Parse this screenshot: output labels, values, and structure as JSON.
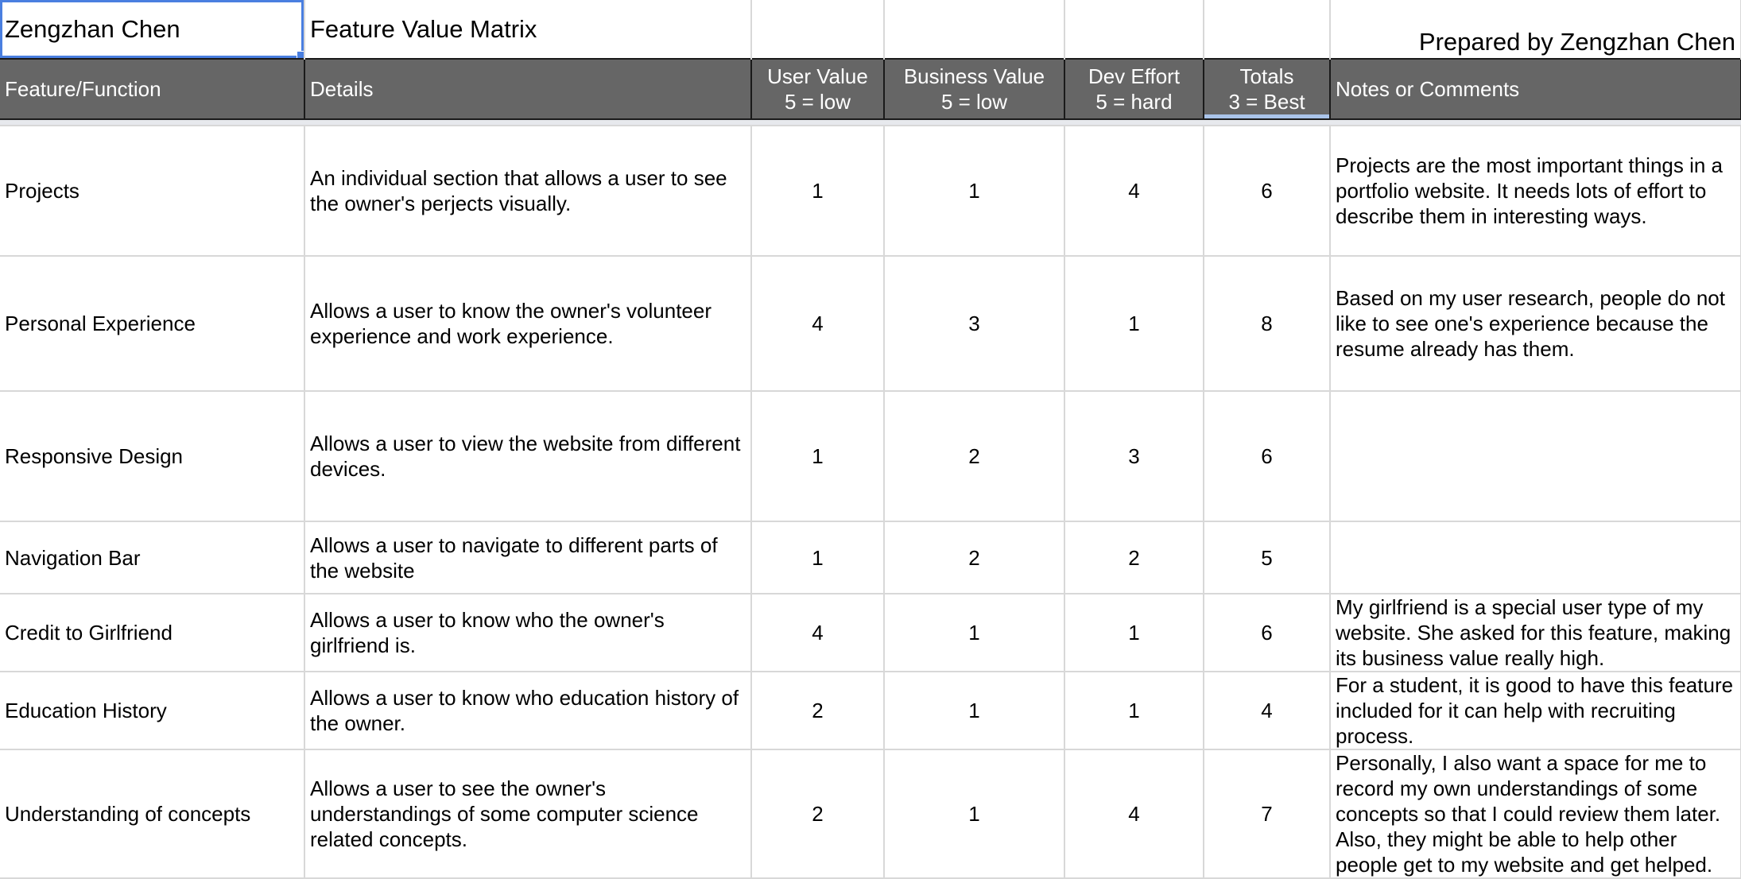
{
  "sheet": {
    "author_cell": "Zengzhan Chen",
    "title_cell": "Feature Value Matrix",
    "prepared_by": "Prepared by Zengzhan Chen"
  },
  "header": {
    "feature": "Feature/Function",
    "details": "Details",
    "user_value": "User Value",
    "user_value_scale": "5 = low",
    "business_value": "Business Value",
    "business_value_scale": "5 = low",
    "dev_effort": "Dev Effort",
    "dev_effort_scale": "5 = hard",
    "totals": "Totals",
    "totals_scale": "3 = Best",
    "notes": "Notes or Comments"
  },
  "rows": [
    {
      "feature": "Projects",
      "details": "An individual section that allows a user to see the owner's perjects visually.",
      "user_value": "1",
      "business_value": "1",
      "dev_effort": "4",
      "totals": "6",
      "notes": "Projects are the most important things in a portfolio website. It needs lots of effort to describe them in interesting ways."
    },
    {
      "feature": "Personal Experience",
      "details": "Allows a user to know the owner's volunteer experience and work experience.",
      "user_value": "4",
      "business_value": "3",
      "dev_effort": "1",
      "totals": "8",
      "notes": "Based on my user research, people do not like to see one's experience because the resume already has them."
    },
    {
      "feature": "Responsive Design",
      "details": "Allows a user to view the website from different devices.",
      "user_value": "1",
      "business_value": "2",
      "dev_effort": "3",
      "totals": "6",
      "notes": ""
    },
    {
      "feature": "Navigation Bar",
      "details": "Allows a user to navigate to different parts of the website",
      "user_value": "1",
      "business_value": "2",
      "dev_effort": "2",
      "totals": "5",
      "notes": ""
    },
    {
      "feature": "Credit to Girlfriend",
      "details": "Allows a user to know who the owner's girlfriend is.",
      "user_value": "4",
      "business_value": "1",
      "dev_effort": "1",
      "totals": "6",
      "notes": "My girlfriend is a special user type of my website. She asked for this feature, making its business value really high."
    },
    {
      "feature": "Education History",
      "details": "Allows a user to know who education history of the owner.",
      "user_value": "2",
      "business_value": "1",
      "dev_effort": "1",
      "totals": "4",
      "notes": "For a student, it is good to have this feature included for it can help with recruiting process."
    },
    {
      "feature": "Understanding of concepts",
      "details": "Allows a user to see the owner's understandings of some computer science related concepts.",
      "user_value": "2",
      "business_value": "1",
      "dev_effort": "4",
      "totals": "7",
      "notes": "Personally, I also want a space for me to record my own understandings of some concepts so that I could review them later. Also, they might be able to help other people get to my website and get helped."
    }
  ]
}
